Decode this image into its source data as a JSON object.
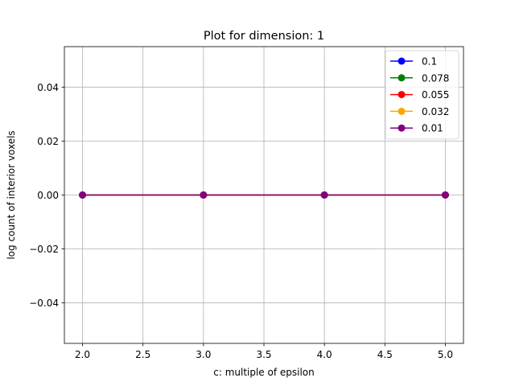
{
  "chart_data": {
    "type": "line",
    "title": "Plot for dimension: 1",
    "xlabel": "c: multiple of epsilon",
    "ylabel": "log count of interior voxels",
    "x": [
      2,
      3,
      4,
      5
    ],
    "xlim": [
      1.85,
      5.15
    ],
    "ylim": [
      -0.055,
      0.055
    ],
    "xticks": [
      2.0,
      2.5,
      3.0,
      3.5,
      4.0,
      4.5,
      5.0
    ],
    "xtick_labels": [
      "2.0",
      "2.5",
      "3.0",
      "3.5",
      "4.0",
      "4.5",
      "5.0"
    ],
    "yticks": [
      -0.04,
      -0.02,
      0.0,
      0.02,
      0.04
    ],
    "ytick_labels": [
      "−0.04",
      "−0.02",
      "0.00",
      "0.02",
      "0.04"
    ],
    "grid": true,
    "legend_position": "top-right",
    "marker": "circle",
    "series": [
      {
        "name": "0.1",
        "color": "#0000ff",
        "values": [
          0,
          0,
          0,
          0
        ]
      },
      {
        "name": "0.078",
        "color": "#008000",
        "values": [
          0,
          0,
          0,
          0
        ]
      },
      {
        "name": "0.055",
        "color": "#ff0000",
        "values": [
          0,
          0,
          0,
          0
        ]
      },
      {
        "name": "0.032",
        "color": "#ffa500",
        "values": [
          0,
          0,
          0,
          0
        ]
      },
      {
        "name": "0.01",
        "color": "#800080",
        "values": [
          0,
          0,
          0,
          0
        ]
      }
    ]
  }
}
